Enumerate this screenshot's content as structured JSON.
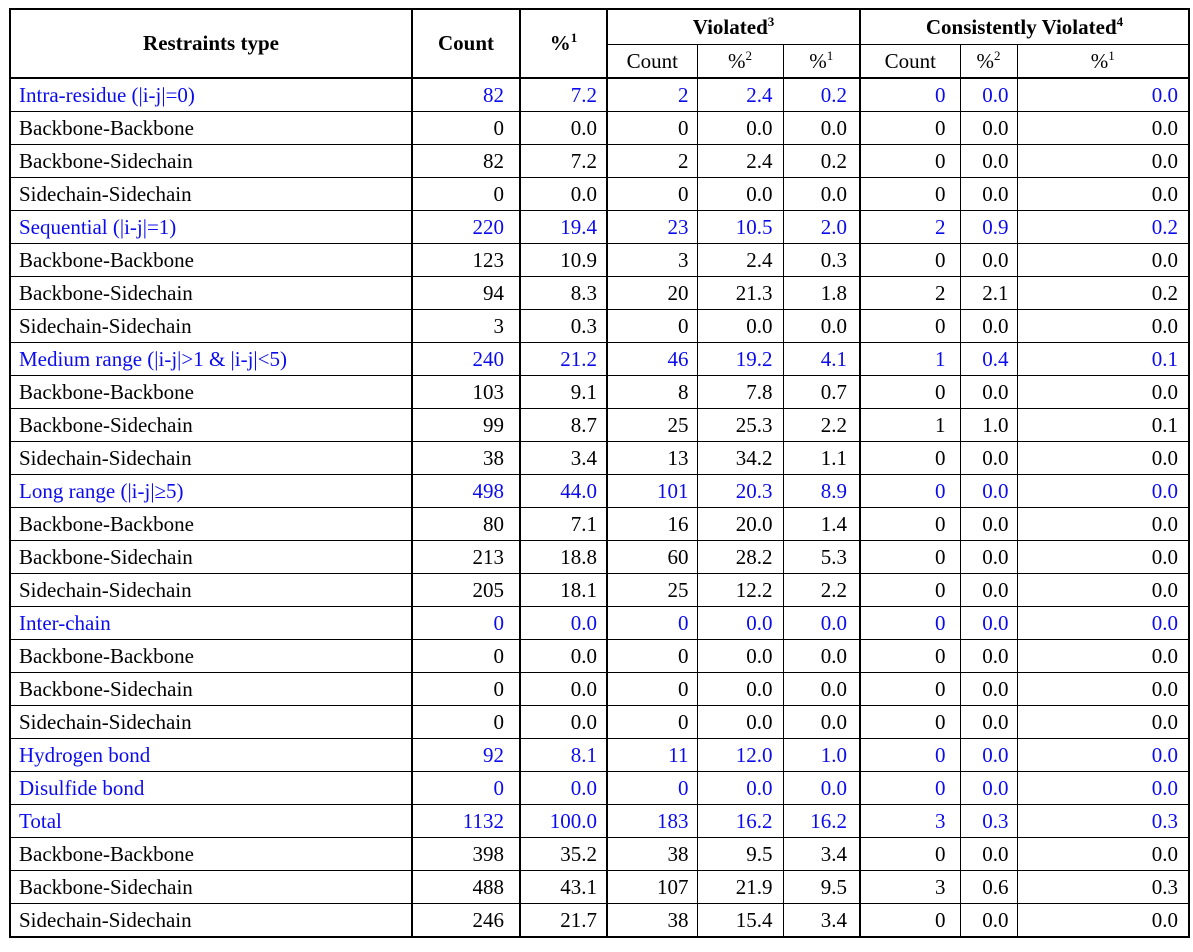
{
  "colors": {
    "section_text": "#0B0BEE",
    "body_text": "#000000",
    "border": "#000000",
    "background": "#FFFFFF"
  },
  "table": {
    "headers": {
      "restraints_type": "Restraints type",
      "count": "Count",
      "pct": "%",
      "sup1": "1",
      "sup2": "2",
      "violated": "Violated",
      "sup_violated": "3",
      "consistently_violated": "Consistently Violated",
      "sup_consistently": "4",
      "sub_count": "Count"
    },
    "columns": [
      "restraints_type",
      "count",
      "pct1",
      "violated_count",
      "violated_pct2",
      "violated_pct1",
      "consistently_count",
      "consistently_pct2",
      "consistently_pct1"
    ],
    "rows": [
      {
        "label": "Intra-residue (|i-j|=0)",
        "section": true,
        "values": [
          "82",
          "7.2",
          "2",
          "2.4",
          "0.2",
          "0",
          "0.0",
          "0.0"
        ]
      },
      {
        "label": "Backbone-Backbone",
        "section": false,
        "values": [
          "0",
          "0.0",
          "0",
          "0.0",
          "0.0",
          "0",
          "0.0",
          "0.0"
        ]
      },
      {
        "label": "Backbone-Sidechain",
        "section": false,
        "values": [
          "82",
          "7.2",
          "2",
          "2.4",
          "0.2",
          "0",
          "0.0",
          "0.0"
        ]
      },
      {
        "label": "Sidechain-Sidechain",
        "section": false,
        "values": [
          "0",
          "0.0",
          "0",
          "0.0",
          "0.0",
          "0",
          "0.0",
          "0.0"
        ]
      },
      {
        "label": "Sequential (|i-j|=1)",
        "section": true,
        "values": [
          "220",
          "19.4",
          "23",
          "10.5",
          "2.0",
          "2",
          "0.9",
          "0.2"
        ]
      },
      {
        "label": "Backbone-Backbone",
        "section": false,
        "values": [
          "123",
          "10.9",
          "3",
          "2.4",
          "0.3",
          "0",
          "0.0",
          "0.0"
        ]
      },
      {
        "label": "Backbone-Sidechain",
        "section": false,
        "values": [
          "94",
          "8.3",
          "20",
          "21.3",
          "1.8",
          "2",
          "2.1",
          "0.2"
        ]
      },
      {
        "label": "Sidechain-Sidechain",
        "section": false,
        "values": [
          "3",
          "0.3",
          "0",
          "0.0",
          "0.0",
          "0",
          "0.0",
          "0.0"
        ]
      },
      {
        "label": "Medium range (|i-j|>1 & |i-j|<5)",
        "section": true,
        "values": [
          "240",
          "21.2",
          "46",
          "19.2",
          "4.1",
          "1",
          "0.4",
          "0.1"
        ]
      },
      {
        "label": "Backbone-Backbone",
        "section": false,
        "values": [
          "103",
          "9.1",
          "8",
          "7.8",
          "0.7",
          "0",
          "0.0",
          "0.0"
        ]
      },
      {
        "label": "Backbone-Sidechain",
        "section": false,
        "values": [
          "99",
          "8.7",
          "25",
          "25.3",
          "2.2",
          "1",
          "1.0",
          "0.1"
        ]
      },
      {
        "label": "Sidechain-Sidechain",
        "section": false,
        "values": [
          "38",
          "3.4",
          "13",
          "34.2",
          "1.1",
          "0",
          "0.0",
          "0.0"
        ]
      },
      {
        "label": "Long range (|i-j|≥5)",
        "section": true,
        "values": [
          "498",
          "44.0",
          "101",
          "20.3",
          "8.9",
          "0",
          "0.0",
          "0.0"
        ]
      },
      {
        "label": "Backbone-Backbone",
        "section": false,
        "values": [
          "80",
          "7.1",
          "16",
          "20.0",
          "1.4",
          "0",
          "0.0",
          "0.0"
        ]
      },
      {
        "label": "Backbone-Sidechain",
        "section": false,
        "values": [
          "213",
          "18.8",
          "60",
          "28.2",
          "5.3",
          "0",
          "0.0",
          "0.0"
        ]
      },
      {
        "label": "Sidechain-Sidechain",
        "section": false,
        "values": [
          "205",
          "18.1",
          "25",
          "12.2",
          "2.2",
          "0",
          "0.0",
          "0.0"
        ]
      },
      {
        "label": "Inter-chain",
        "section": true,
        "values": [
          "0",
          "0.0",
          "0",
          "0.0",
          "0.0",
          "0",
          "0.0",
          "0.0"
        ]
      },
      {
        "label": "Backbone-Backbone",
        "section": false,
        "values": [
          "0",
          "0.0",
          "0",
          "0.0",
          "0.0",
          "0",
          "0.0",
          "0.0"
        ]
      },
      {
        "label": "Backbone-Sidechain",
        "section": false,
        "values": [
          "0",
          "0.0",
          "0",
          "0.0",
          "0.0",
          "0",
          "0.0",
          "0.0"
        ]
      },
      {
        "label": "Sidechain-Sidechain",
        "section": false,
        "values": [
          "0",
          "0.0",
          "0",
          "0.0",
          "0.0",
          "0",
          "0.0",
          "0.0"
        ]
      },
      {
        "label": "Hydrogen bond",
        "section": true,
        "values": [
          "92",
          "8.1",
          "11",
          "12.0",
          "1.0",
          "0",
          "0.0",
          "0.0"
        ]
      },
      {
        "label": "Disulfide bond",
        "section": true,
        "values": [
          "0",
          "0.0",
          "0",
          "0.0",
          "0.0",
          "0",
          "0.0",
          "0.0"
        ]
      },
      {
        "label": "Total",
        "section": true,
        "values": [
          "1132",
          "100.0",
          "183",
          "16.2",
          "16.2",
          "3",
          "0.3",
          "0.3"
        ]
      },
      {
        "label": "Backbone-Backbone",
        "section": false,
        "values": [
          "398",
          "35.2",
          "38",
          "9.5",
          "3.4",
          "0",
          "0.0",
          "0.0"
        ]
      },
      {
        "label": "Backbone-Sidechain",
        "section": false,
        "values": [
          "488",
          "43.1",
          "107",
          "21.9",
          "9.5",
          "3",
          "0.6",
          "0.3"
        ]
      },
      {
        "label": "Sidechain-Sidechain",
        "section": false,
        "values": [
          "246",
          "21.7",
          "38",
          "15.4",
          "3.4",
          "0",
          "0.0",
          "0.0"
        ]
      }
    ]
  }
}
